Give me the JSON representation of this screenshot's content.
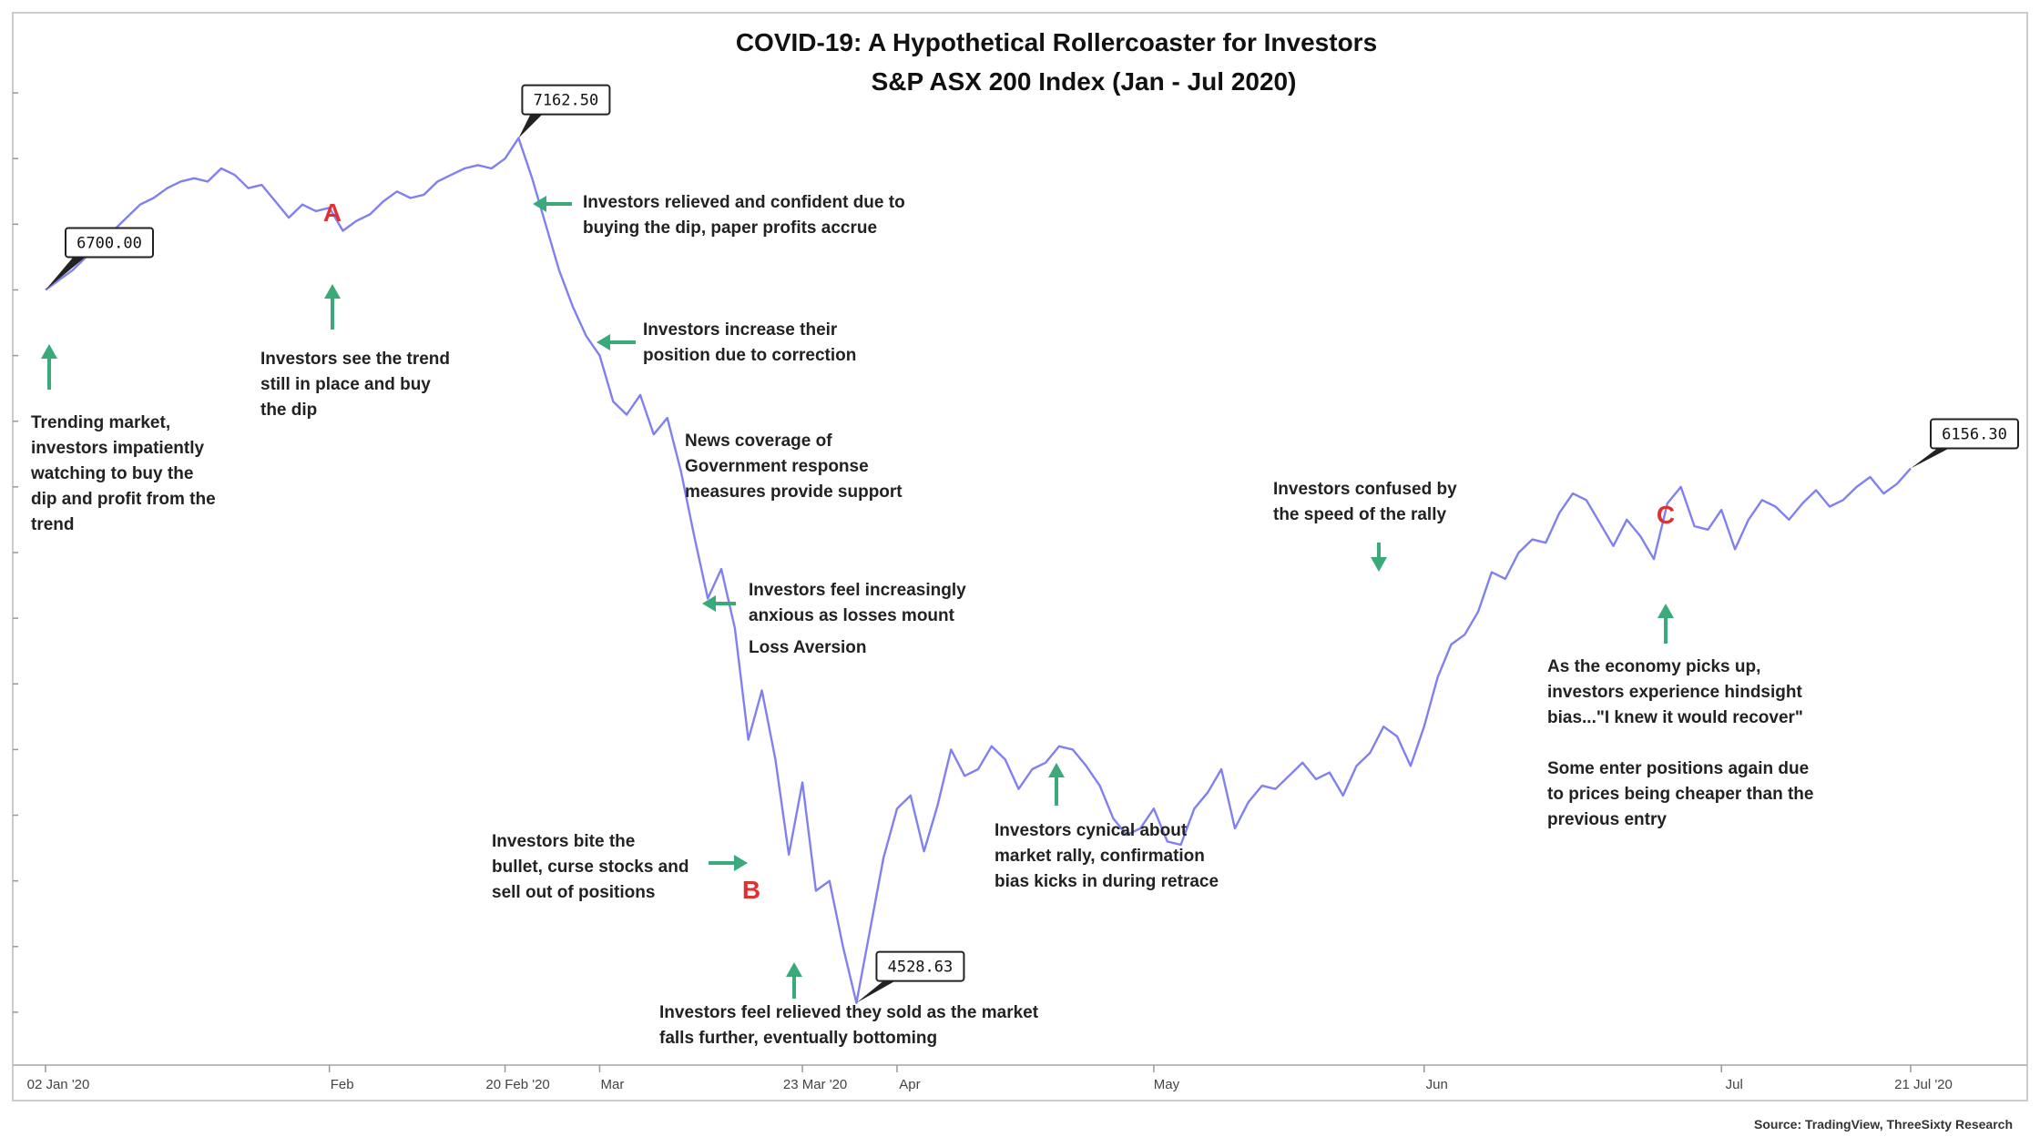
{
  "chart_data": {
    "type": "line",
    "title": "COVID-19: A Hypothetical Rollercoaster for Investors",
    "subtitle": "S&P ASX 200 Index (Jan - Jul 2020)",
    "source": "Source: TradingView, ThreeSixty Research",
    "ylim": [
      4400,
      7400
    ],
    "grid": false,
    "xticks": [
      {
        "label": "02 Jan '20",
        "x": 0
      },
      {
        "label": "Feb",
        "x": 21
      },
      {
        "label": "20 Feb '20",
        "x": 34
      },
      {
        "label": "Mar",
        "x": 41
      },
      {
        "label": "23 Mar '20",
        "x": 56
      },
      {
        "label": "Apr",
        "x": 63
      },
      {
        "label": "May",
        "x": 82
      },
      {
        "label": "Jun",
        "x": 102
      },
      {
        "label": "Jul",
        "x": 124
      },
      {
        "label": "21 Jul '20",
        "x": 138
      }
    ],
    "series": [
      {
        "name": "S&P ASX 200",
        "values": [
          [
            0,
            6700
          ],
          [
            1,
            6730
          ],
          [
            2,
            6760
          ],
          [
            3,
            6800
          ],
          [
            4,
            6850
          ],
          [
            5,
            6880
          ],
          [
            6,
            6920
          ],
          [
            7,
            6960
          ],
          [
            8,
            6980
          ],
          [
            9,
            7010
          ],
          [
            10,
            7030
          ],
          [
            11,
            7040
          ],
          [
            12,
            7030
          ],
          [
            13,
            7070
          ],
          [
            14,
            7050
          ],
          [
            15,
            7010
          ],
          [
            16,
            7020
          ],
          [
            17,
            6970
          ],
          [
            18,
            6920
          ],
          [
            19,
            6960
          ],
          [
            20,
            6940
          ],
          [
            21,
            6950
          ],
          [
            22,
            6880
          ],
          [
            23,
            6910
          ],
          [
            24,
            6930
          ],
          [
            25,
            6970
          ],
          [
            26,
            7000
          ],
          [
            27,
            6980
          ],
          [
            28,
            6990
          ],
          [
            29,
            7030
          ],
          [
            30,
            7050
          ],
          [
            31,
            7070
          ],
          [
            32,
            7080
          ],
          [
            33,
            7070
          ],
          [
            34,
            7100
          ],
          [
            35,
            7162.5
          ],
          [
            36,
            7040
          ],
          [
            37,
            6900
          ],
          [
            38,
            6760
          ],
          [
            39,
            6650
          ],
          [
            40,
            6560
          ],
          [
            41,
            6500
          ],
          [
            42,
            6360
          ],
          [
            43,
            6320
          ],
          [
            44,
            6380
          ],
          [
            45,
            6260
          ],
          [
            46,
            6310
          ],
          [
            47,
            6150
          ],
          [
            48,
            5950
          ],
          [
            49,
            5760
          ],
          [
            50,
            5850
          ],
          [
            51,
            5670
          ],
          [
            52,
            5330
          ],
          [
            53,
            5480
          ],
          [
            54,
            5270
          ],
          [
            55,
            4980
          ],
          [
            56,
            5200
          ],
          [
            57,
            4870
          ],
          [
            58,
            4900
          ],
          [
            59,
            4700
          ],
          [
            60,
            4528.63
          ],
          [
            61,
            4750
          ],
          [
            62,
            4970
          ],
          [
            63,
            5120
          ],
          [
            64,
            5160
          ],
          [
            65,
            4990
          ],
          [
            66,
            5130
          ],
          [
            67,
            5300
          ],
          [
            68,
            5220
          ],
          [
            69,
            5240
          ],
          [
            70,
            5310
          ],
          [
            71,
            5270
          ],
          [
            72,
            5180
          ],
          [
            73,
            5240
          ],
          [
            74,
            5260
          ],
          [
            75,
            5310
          ],
          [
            76,
            5300
          ],
          [
            77,
            5250
          ],
          [
            78,
            5190
          ],
          [
            79,
            5090
          ],
          [
            80,
            5040
          ],
          [
            81,
            5060
          ],
          [
            82,
            5120
          ],
          [
            83,
            5020
          ],
          [
            84,
            5010
          ],
          [
            85,
            5120
          ],
          [
            86,
            5170
          ],
          [
            87,
            5240
          ],
          [
            88,
            5060
          ],
          [
            89,
            5140
          ],
          [
            90,
            5190
          ],
          [
            91,
            5180
          ],
          [
            92,
            5220
          ],
          [
            93,
            5260
          ],
          [
            94,
            5210
          ],
          [
            95,
            5230
          ],
          [
            96,
            5160
          ],
          [
            97,
            5250
          ],
          [
            98,
            5290
          ],
          [
            99,
            5370
          ],
          [
            100,
            5340
          ],
          [
            101,
            5250
          ],
          [
            102,
            5370
          ],
          [
            103,
            5520
          ],
          [
            104,
            5620
          ],
          [
            105,
            5650
          ],
          [
            106,
            5720
          ],
          [
            107,
            5840
          ],
          [
            108,
            5820
          ],
          [
            109,
            5900
          ],
          [
            110,
            5940
          ],
          [
            111,
            5930
          ],
          [
            112,
            6020
          ],
          [
            113,
            6080
          ],
          [
            114,
            6060
          ],
          [
            115,
            5990
          ],
          [
            116,
            5920
          ],
          [
            117,
            6000
          ],
          [
            118,
            5950
          ],
          [
            119,
            5880
          ],
          [
            120,
            6050
          ],
          [
            121,
            6100
          ],
          [
            122,
            5980
          ],
          [
            123,
            5970
          ],
          [
            124,
            6030
          ],
          [
            125,
            5910
          ],
          [
            126,
            6000
          ],
          [
            127,
            6060
          ],
          [
            128,
            6040
          ],
          [
            129,
            6000
          ],
          [
            130,
            6050
          ],
          [
            131,
            6090
          ],
          [
            132,
            6040
          ],
          [
            133,
            6060
          ],
          [
            134,
            6100
          ],
          [
            135,
            6130
          ],
          [
            136,
            6080
          ],
          [
            137,
            6110
          ],
          [
            138,
            6156.3
          ]
        ]
      }
    ],
    "callouts": [
      {
        "label": "6700.00",
        "x": 0
      },
      {
        "label": "7162.50",
        "x": 35
      },
      {
        "label": "4528.63",
        "x": 60
      },
      {
        "label": "6156.30",
        "x": 138
      }
    ],
    "markers": [
      "A",
      "B",
      "C"
    ]
  },
  "annotations": {
    "trending": [
      "Trending market,",
      "investors impatiently",
      "watching to buy the",
      "dip and profit from the",
      "trend"
    ],
    "trend_dip": [
      "Investors see the trend",
      "still in place and buy",
      "the dip"
    ],
    "relieved": [
      "Investors relieved and confident due to",
      "buying the dip, paper profits accrue"
    ],
    "increase": [
      "Investors increase their",
      "position due to correction"
    ],
    "news": [
      "News coverage of",
      "Government response",
      "measures provide support"
    ],
    "anxious": [
      "Investors feel increasingly",
      "anxious as losses mount"
    ],
    "loss_aversion": "Loss Aversion",
    "bite": [
      "Investors bite the",
      "bullet, curse stocks and",
      "sell out of positions"
    ],
    "bottoming": [
      "Investors feel relieved they sold as the market",
      "falls further, eventually bottoming"
    ],
    "cynical": [
      "Investors cynical about",
      "market rally, confirmation",
      "bias kicks in during retrace"
    ],
    "confused": [
      "Investors confused by",
      "the speed of the rally"
    ],
    "hindsight": [
      "As the economy picks up,",
      "investors experience hindsight",
      "bias...\"I knew it would recover\""
    ],
    "reenter": [
      "Some enter positions again due",
      "to prices being cheaper than the",
      "previous entry"
    ]
  },
  "colors": {
    "line": "#8080f0",
    "arrow": "#3aaa7a",
    "letter": "#e03030"
  }
}
